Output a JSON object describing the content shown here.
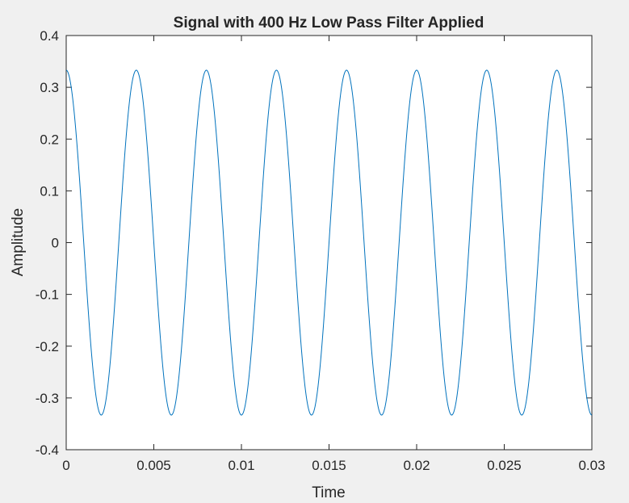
{
  "chart_data": {
    "type": "line",
    "title": "Signal with 400 Hz Low Pass Filter Applied",
    "xlabel": "Time",
    "ylabel": "Amplitude",
    "xlim": [
      0,
      0.03
    ],
    "ylim": [
      -0.4,
      0.4
    ],
    "xticks": [
      0,
      0.005,
      0.01,
      0.015,
      0.02,
      0.025,
      0.03
    ],
    "xtick_labels": [
      "0",
      "0.005",
      "0.01",
      "0.015",
      "0.02",
      "0.025",
      "0.03"
    ],
    "yticks": [
      -0.4,
      -0.3,
      -0.2,
      -0.1,
      0,
      0.1,
      0.2,
      0.3,
      0.4
    ],
    "ytick_labels": [
      "-0.4",
      "-0.3",
      "-0.2",
      "-0.1",
      "0",
      "0.1",
      "0.2",
      "0.3",
      "0.4"
    ],
    "grid": false,
    "series": [
      {
        "color": "#0072BD",
        "function": "cosine",
        "amplitude": 0.333,
        "frequency_hz": 250,
        "phase_rad": 0,
        "x_start": 0,
        "x_end": 0.03
      }
    ]
  }
}
